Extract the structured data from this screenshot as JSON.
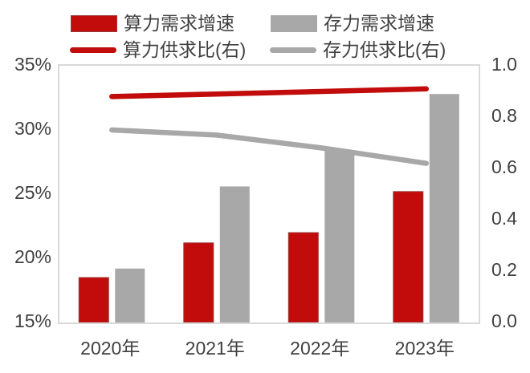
{
  "chart_data": {
    "type": "bar",
    "subtype": "combo-bar-line-dual-axis",
    "title": "",
    "categories": [
      "2020年",
      "2021年",
      "2022年",
      "2023年"
    ],
    "series": [
      {
        "name": "算力需求增速",
        "chart_type": "bar",
        "axis": "left",
        "color": "#c20b0b",
        "border_color": "#9b3a3a",
        "value_unit": "%",
        "values": [
          18.5,
          21.2,
          22.0,
          25.2
        ]
      },
      {
        "name": "存力需求增速",
        "chart_type": "bar",
        "axis": "left",
        "color": "#a8a8a8",
        "border_color": "",
        "value_unit": "%",
        "values": [
          19.2,
          25.6,
          28.4,
          32.8
        ]
      },
      {
        "name": "算力供求比(右)",
        "chart_type": "line",
        "axis": "right",
        "color": "#c20b0b",
        "values": [
          0.88,
          0.89,
          0.9,
          0.91
        ]
      },
      {
        "name": "存力供求比(右)",
        "chart_type": "line",
        "axis": "right",
        "color": "#a8a8a8",
        "values": [
          0.75,
          0.73,
          0.68,
          0.62
        ]
      }
    ],
    "left_axis": {
      "min": 15,
      "max": 35,
      "tick_labels": [
        "35%",
        "30%",
        "25%",
        "20%",
        "15%"
      ]
    },
    "right_axis": {
      "min": 0.0,
      "max": 1.0,
      "tick_labels": [
        "1.0",
        "0.8",
        "0.6",
        "0.4",
        "0.2",
        "0.0"
      ]
    },
    "grid": false,
    "legend_position": "top",
    "plot_border_color": "#d9d9d9",
    "text_color": "#404040",
    "background_color": "#ffffff"
  }
}
